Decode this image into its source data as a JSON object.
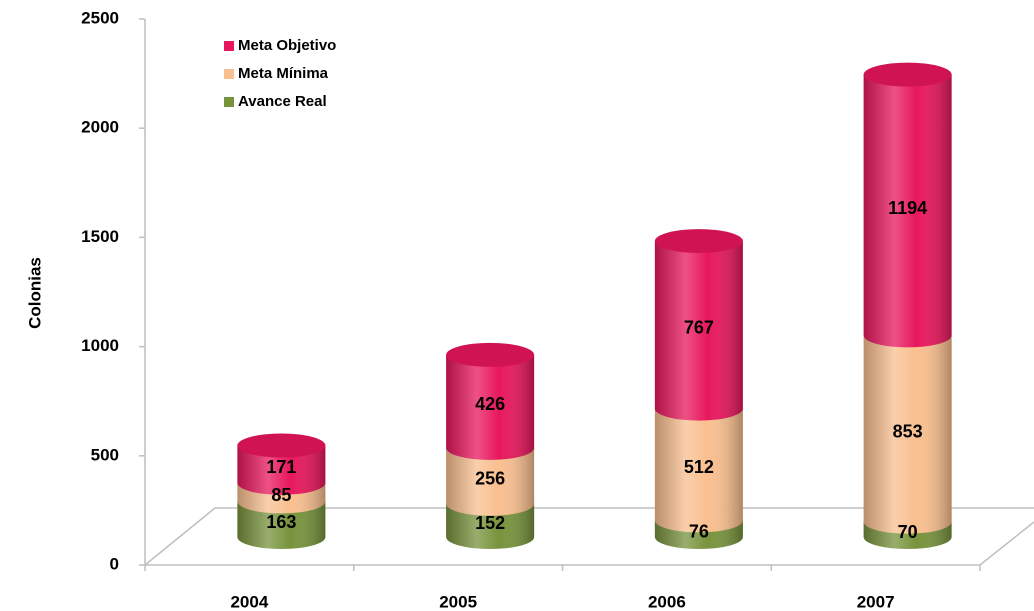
{
  "chart_data": {
    "type": "bar3d_stacked",
    "y_label": "Colonias",
    "categories": [
      "2004",
      "2005",
      "2006",
      "2007"
    ],
    "series": [
      {
        "name": "Avance Real",
        "color": "#77933c",
        "values": [
          163,
          152,
          76,
          70
        ]
      },
      {
        "name": "Meta Mínima",
        "color": "#f9bf8f",
        "values": [
          85,
          256,
          512,
          853
        ]
      },
      {
        "name": "Meta Objetivo",
        "color": "#e8175d",
        "values": [
          171,
          426,
          767,
          1194
        ]
      }
    ],
    "ylim": [
      0,
      2500
    ],
    "yticks": [
      0,
      500,
      1000,
      1500,
      2000,
      2500
    ],
    "legend": "top-left"
  }
}
